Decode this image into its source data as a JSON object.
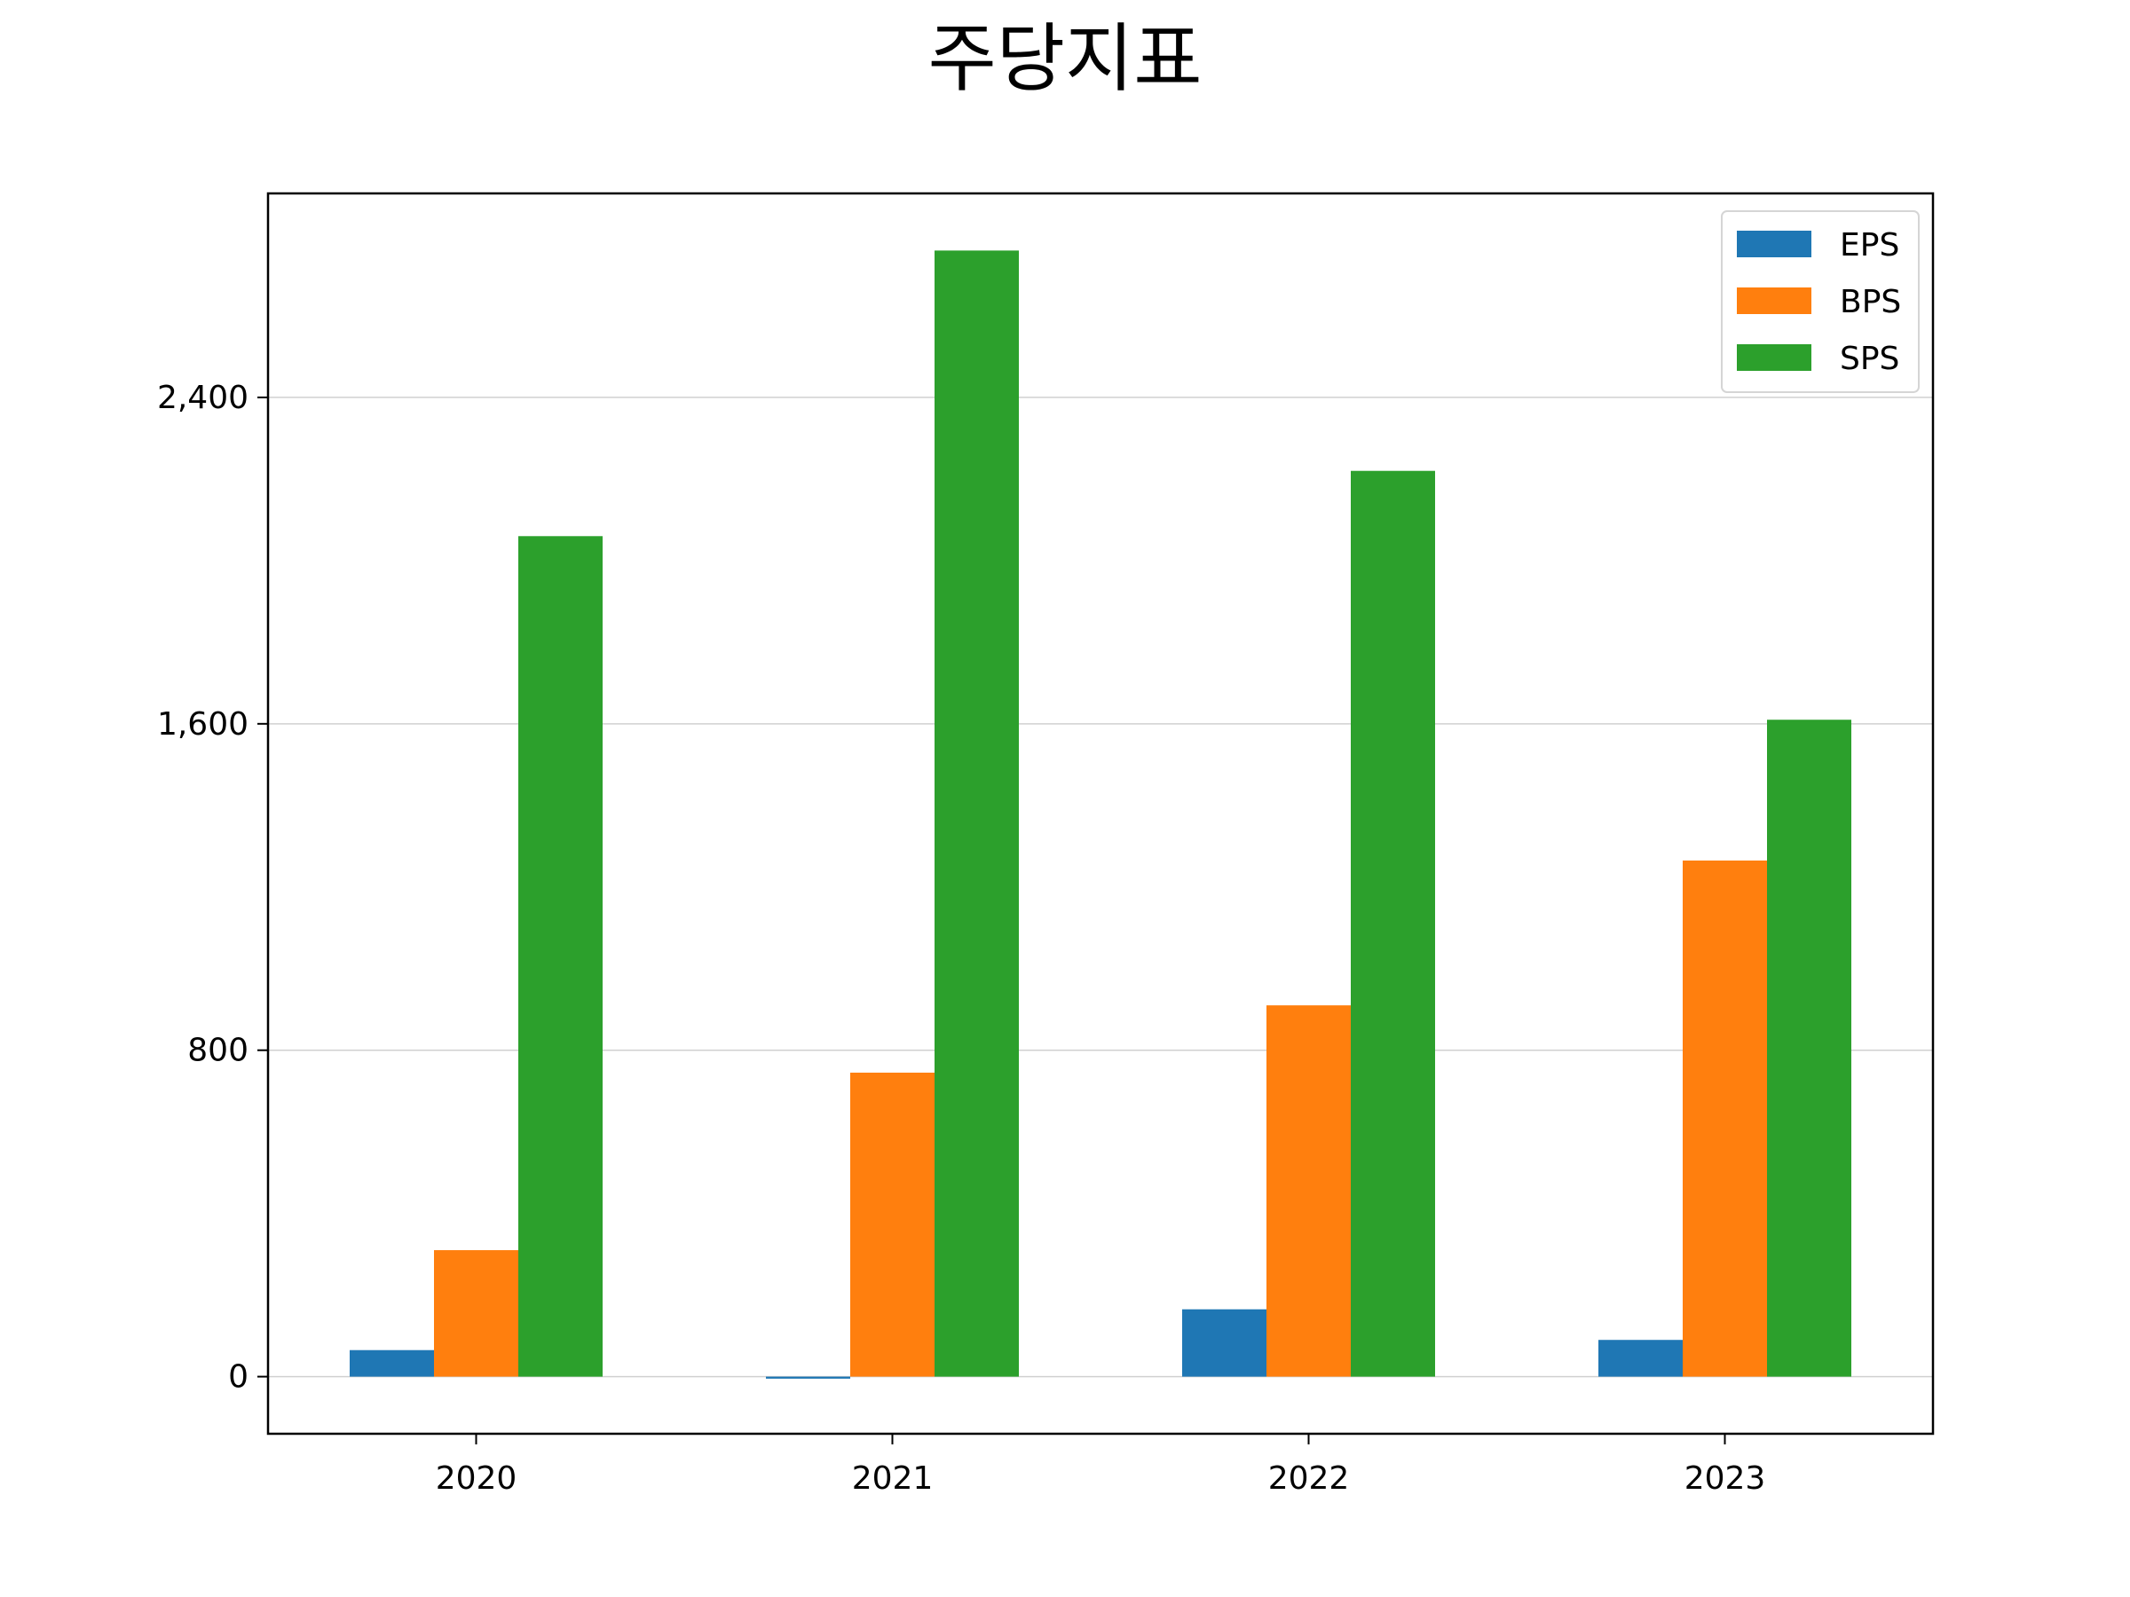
{
  "chart_data": {
    "type": "bar",
    "title": "주당지표",
    "xlabel": "",
    "ylabel": "",
    "categories": [
      "2020",
      "2021",
      "2022",
      "2023"
    ],
    "series": [
      {
        "name": "EPS",
        "color": "#1f77b4",
        "values": [
          65,
          -5,
          165,
          90
        ]
      },
      {
        "name": "BPS",
        "color": "#ff7f0e",
        "values": [
          310,
          745,
          910,
          1265
        ]
      },
      {
        "name": "SPS",
        "color": "#2ca02c",
        "values": [
          2060,
          2760,
          2220,
          1610
        ]
      }
    ],
    "yticks": [
      0,
      800,
      1600,
      2400
    ],
    "ytick_labels": [
      "0",
      "800",
      "1,600",
      "2,400"
    ],
    "ylim": [
      -140,
      2900
    ],
    "grid": "y",
    "legend_position": "top-right"
  }
}
